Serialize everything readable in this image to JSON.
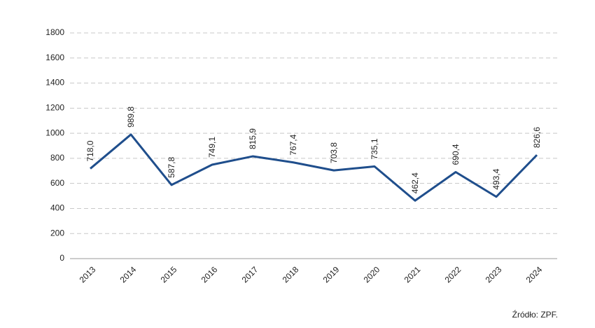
{
  "chart_data": {
    "type": "line",
    "categories": [
      "2013",
      "2014",
      "2015",
      "2016",
      "2017",
      "2018",
      "2019",
      "2020",
      "2021",
      "2022",
      "2023",
      "2024"
    ],
    "values": [
      718.0,
      989.8,
      587.8,
      749.1,
      815.9,
      767.4,
      703.8,
      735.1,
      462.4,
      690.4,
      493.4,
      826.6
    ],
    "value_labels": [
      "718,0",
      "989,8",
      "587,8",
      "749,1",
      "815,9",
      "767,4",
      "703,8",
      "735,1",
      "462,4",
      "690,4",
      "493,4",
      "826,6"
    ],
    "color": "#1f4e8c",
    "ylim": [
      0,
      1800
    ],
    "yticks": [
      0,
      200,
      400,
      600,
      800,
      1000,
      1200,
      1400,
      1600,
      1800
    ],
    "grid": true,
    "source": "Źródło: ZPF."
  }
}
